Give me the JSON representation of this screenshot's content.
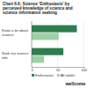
{
  "chart_data": {
    "type": "bar",
    "title": "Chart 6.6: Science 'Enthusiasts' by perceived knowledge of science and science information seeking",
    "orientation": "horizontal",
    "categories": [
      "Know a lot about science",
      "Seek out science info"
    ],
    "series": [
      {
        "name": "Enthusiasts",
        "color": "#2e7d4f",
        "values": [
          87,
          61
        ]
      },
      {
        "name": "All adults",
        "color": "#9fd0a8",
        "values": [
          52,
          24
        ]
      }
    ],
    "xlim": [
      0,
      100
    ],
    "xticks": [
      0,
      50,
      100
    ],
    "grid": true,
    "legend": "bottom",
    "source": "wellcome"
  }
}
